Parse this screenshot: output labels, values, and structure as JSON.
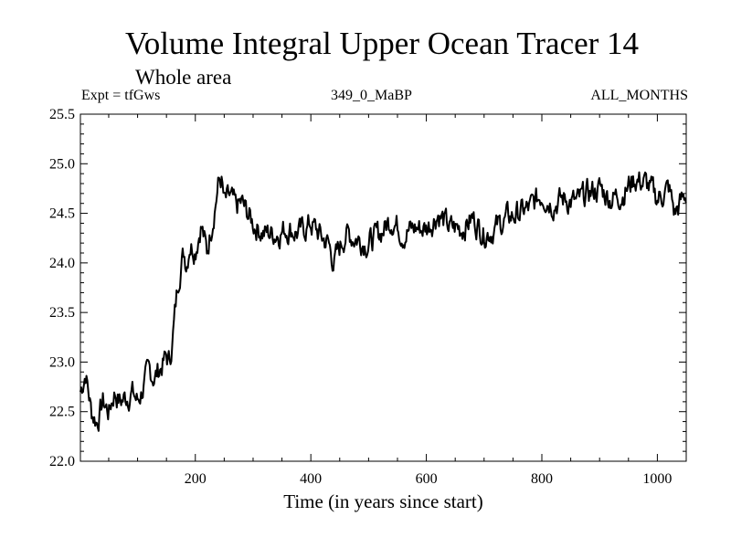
{
  "header": {
    "title": "Volume Integral Upper Ocean Tracer 14",
    "subtitle": "Whole area",
    "experiment": "Expt = tfGws",
    "run_id": "349_0_MaBP",
    "period": "ALL_MONTHS"
  },
  "chart_data": {
    "type": "line",
    "title": "Volume Integral Upper Ocean Tracer 14",
    "subtitle": "Whole area",
    "xlabel": "Time (in years since start)",
    "ylabel": "",
    "xlim": [
      1,
      1050
    ],
    "ylim": [
      22.0,
      25.5
    ],
    "xticks": [
      200,
      400,
      600,
      800,
      1000
    ],
    "yticks": [
      22.0,
      22.5,
      23.0,
      23.5,
      24.0,
      24.5,
      25.0,
      25.5
    ],
    "ytick_labels": [
      "22.0",
      "22.5",
      "23.0",
      "23.5",
      "24.0",
      "24.5",
      "25.0",
      "25.5"
    ],
    "grid": false,
    "series": [
      {
        "name": "Tracer 14",
        "color": "#000000",
        "x": [
          1,
          10,
          20,
          30,
          40,
          50,
          60,
          70,
          80,
          90,
          100,
          110,
          120,
          130,
          140,
          150,
          155,
          160,
          165,
          170,
          175,
          180,
          185,
          190,
          200,
          210,
          220,
          230,
          240,
          245,
          250,
          260,
          270,
          280,
          290,
          300,
          320,
          340,
          360,
          380,
          400,
          420,
          430,
          440,
          450,
          460,
          480,
          500,
          520,
          540,
          560,
          580,
          600,
          620,
          640,
          660,
          680,
          700,
          720,
          740,
          760,
          780,
          800,
          820,
          840,
          860,
          880,
          900,
          920,
          940,
          960,
          980,
          1000,
          1020,
          1030,
          1040,
          1050
        ],
        "values": [
          22.7,
          22.9,
          22.5,
          22.4,
          22.6,
          22.5,
          22.7,
          22.6,
          22.65,
          22.7,
          22.6,
          22.75,
          22.9,
          22.85,
          22.95,
          23.05,
          23.0,
          23.2,
          23.5,
          23.8,
          24.0,
          24.1,
          24.0,
          24.2,
          24.15,
          24.4,
          24.1,
          24.45,
          24.8,
          24.85,
          24.6,
          24.65,
          24.55,
          24.6,
          24.5,
          24.4,
          24.3,
          24.3,
          24.35,
          24.3,
          24.4,
          24.25,
          24.2,
          24.0,
          24.15,
          24.3,
          24.25,
          24.2,
          24.3,
          24.45,
          24.3,
          24.35,
          24.35,
          24.5,
          24.35,
          24.35,
          24.45,
          24.3,
          24.35,
          24.45,
          24.5,
          24.55,
          24.7,
          24.6,
          24.65,
          24.6,
          24.7,
          24.75,
          24.65,
          24.7,
          24.85,
          24.8,
          24.65,
          24.75,
          24.5,
          24.6,
          24.7
        ]
      }
    ]
  }
}
